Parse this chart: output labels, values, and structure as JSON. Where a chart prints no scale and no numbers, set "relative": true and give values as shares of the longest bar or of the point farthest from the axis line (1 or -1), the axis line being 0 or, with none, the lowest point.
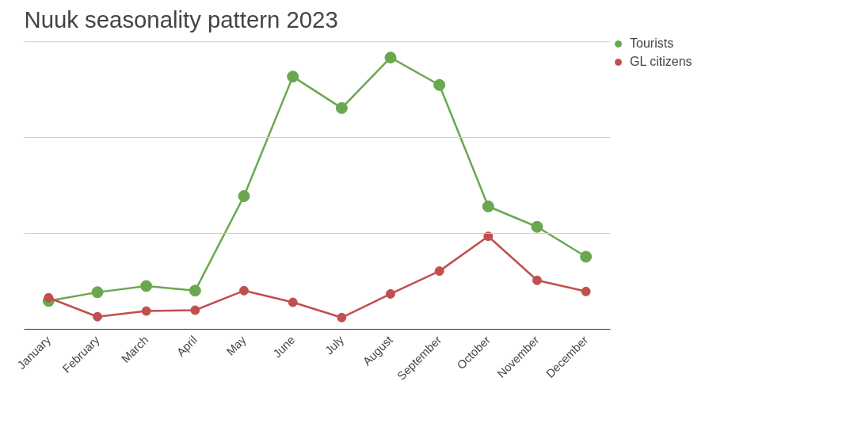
{
  "chart_data": {
    "type": "line",
    "title": "Nuuk seasonality pattern 2023",
    "relative": true,
    "ref_lines": [
      {
        "axis": "y",
        "value": 0.353,
        "color": "#cccccc"
      },
      {
        "axis": "y",
        "value": 0.706,
        "color": "#cccccc"
      },
      {
        "axis": "y",
        "value": 1.058,
        "color": "#cccccc"
      }
    ],
    "legend": "top right",
    "marker": "circle",
    "line_style": "solid",
    "categories": [
      "January",
      "February",
      "March",
      "April",
      "May",
      "June",
      "July",
      "August",
      "September",
      "October",
      "November",
      "December"
    ],
    "series": [
      {
        "name": "Tourists",
        "color": "#6aa84f",
        "values": [
          0.104,
          0.136,
          0.159,
          0.142,
          0.49,
          0.93,
          0.814,
          1,
          0.899,
          0.452,
          0.377,
          0.267
        ]
      },
      {
        "name": "GL citizens",
        "color": "#c0504d",
        "values": [
          0.116,
          0.046,
          0.067,
          0.07,
          0.142,
          0.099,
          0.043,
          0.13,
          0.214,
          0.342,
          0.18,
          0.139
        ]
      }
    ]
  }
}
